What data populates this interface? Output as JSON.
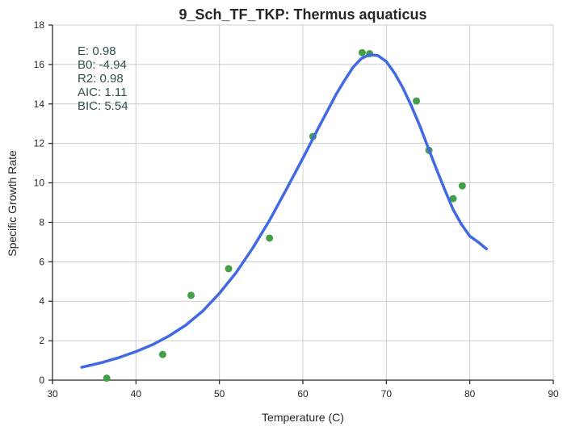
{
  "chart_data": {
    "type": "scatter",
    "title": "9_Sch_TF_TKP: Thermus aquaticus",
    "xlabel": "Temperature (C)",
    "ylabel": "Specific Growth Rate",
    "xlim": [
      30,
      90
    ],
    "ylim": [
      0,
      18
    ],
    "xticks": [
      "30",
      "40",
      "50",
      "60",
      "70",
      "80",
      "90"
    ],
    "yticks": [
      "0",
      "2",
      "4",
      "6",
      "8",
      "10",
      "12",
      "14",
      "16",
      "18"
    ],
    "grid": true,
    "stats": [
      "E:  0.98",
      "B0:  -4.94",
      "R2:  0.98",
      "AIC: 1.11",
      "BIC: 5.54"
    ],
    "colors": {
      "points": "#43a047",
      "fit": "#4169e1"
    },
    "series": [
      {
        "kind": "points",
        "x": [
          36.5,
          43.2,
          46.6,
          51.1,
          56.0,
          61.2,
          67.1,
          68.0,
          73.6,
          75.1,
          78.0,
          79.1
        ],
        "y": [
          0.1,
          1.3,
          4.3,
          5.65,
          7.2,
          12.35,
          16.6,
          16.55,
          14.15,
          11.65,
          9.2,
          9.85
        ]
      },
      {
        "kind": "fit",
        "x": [
          33.5,
          36,
          38,
          40,
          42,
          44,
          46,
          48,
          50,
          52,
          54,
          56,
          58,
          60,
          62,
          64,
          65,
          66,
          67,
          68,
          69,
          70,
          71,
          72,
          73,
          74,
          75,
          76,
          77,
          78,
          79,
          80,
          81,
          82
        ],
        "y": [
          0.65,
          0.9,
          1.15,
          1.45,
          1.8,
          2.25,
          2.8,
          3.5,
          4.4,
          5.45,
          6.7,
          8.1,
          9.65,
          11.25,
          12.9,
          14.5,
          15.2,
          15.85,
          16.3,
          16.5,
          16.45,
          16.15,
          15.55,
          14.8,
          13.9,
          12.9,
          11.8,
          10.7,
          9.65,
          8.65,
          7.9,
          7.3,
          7.0,
          6.65
        ]
      }
    ]
  }
}
